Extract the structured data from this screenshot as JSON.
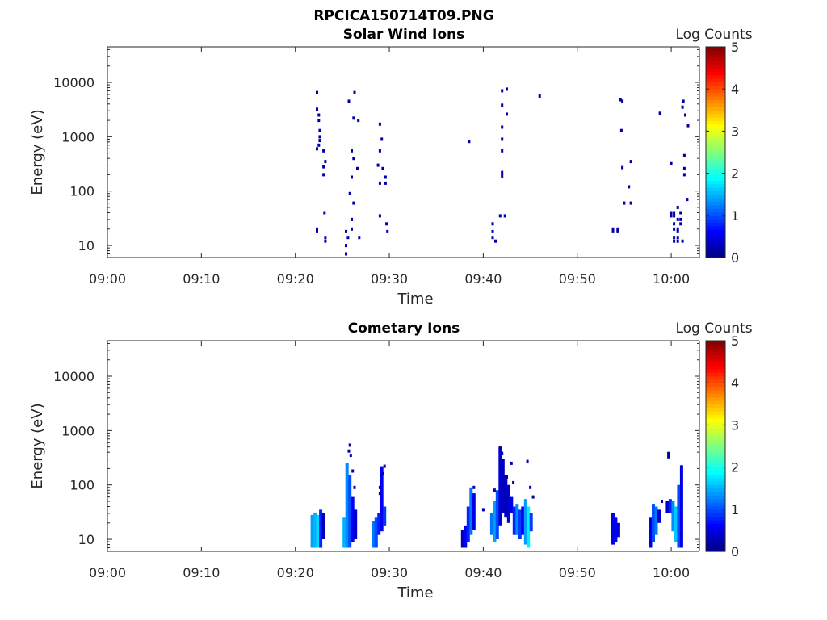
{
  "figure": {
    "title": "RPCICA150714T09.PNG"
  },
  "chart_data": [
    {
      "type": "heatmap",
      "title": "Solar Wind Ions",
      "xlabel": "Time",
      "ylabel": "Energy (eV)",
      "x_ticks": [
        "09:00",
        "09:10",
        "09:20",
        "09:30",
        "09:40",
        "09:50",
        "10:00"
      ],
      "y_ticks": [
        "10",
        "100",
        "1000",
        "10000"
      ],
      "y_scale": "log",
      "xlim": [
        "09:00",
        "10:03"
      ],
      "ylim": [
        6,
        45000
      ],
      "colorbar": {
        "label": "Log Counts",
        "ticks": [
          "0",
          "1",
          "2",
          "3",
          "4",
          "5"
        ],
        "range": [
          0,
          5
        ],
        "colormap": "jet"
      },
      "points": [
        [
          "09:22.3",
          6500,
          0.2
        ],
        [
          "09:22.3",
          3200,
          0.2
        ],
        [
          "09:22.5",
          2500,
          0.2
        ],
        [
          "09:22.5",
          2000,
          0.2
        ],
        [
          "09:22.6",
          1300,
          0.2
        ],
        [
          "09:22.6",
          1000,
          0.2
        ],
        [
          "09:22.6",
          850,
          0.2
        ],
        [
          "09:22.5",
          700,
          0.2
        ],
        [
          "09:22.3",
          600,
          0.2
        ],
        [
          "09:23.0",
          550,
          0.2
        ],
        [
          "09:23.2",
          350,
          0.2
        ],
        [
          "09:23.0",
          280,
          0.2
        ],
        [
          "09:23.0",
          200,
          0.2
        ],
        [
          "09:23.1",
          40,
          0.2
        ],
        [
          "09:22.3",
          20,
          0.2
        ],
        [
          "09:22.3",
          18,
          0.2
        ],
        [
          "09:23.2",
          14,
          0.2
        ],
        [
          "09:23.2",
          12,
          0.2
        ],
        [
          "09:25.7",
          4500,
          0.2
        ],
        [
          "09:26.3",
          6500,
          0.2
        ],
        [
          "09:26.2",
          2200,
          0.2
        ],
        [
          "09:26.7",
          2000,
          0.2
        ],
        [
          "09:26.0",
          550,
          0.2
        ],
        [
          "09:26.2",
          400,
          0.2
        ],
        [
          "09:26.6",
          260,
          0.2
        ],
        [
          "09:26.0",
          180,
          0.2
        ],
        [
          "09:25.8",
          90,
          0.2
        ],
        [
          "09:26.2",
          60,
          0.2
        ],
        [
          "09:26.0",
          30,
          0.2
        ],
        [
          "09:25.4",
          18,
          0.2
        ],
        [
          "09:25.6",
          14,
          0.2
        ],
        [
          "09:25.4",
          10,
          0.2
        ],
        [
          "09:25.4",
          7,
          0.2
        ],
        [
          "09:26.0",
          20,
          0.2
        ],
        [
          "09:26.8",
          14,
          0.2
        ],
        [
          "09:29.0",
          1700,
          0.2
        ],
        [
          "09:29.2",
          900,
          0.2
        ],
        [
          "09:29.0",
          550,
          0.2
        ],
        [
          "09:28.8",
          300,
          0.2
        ],
        [
          "09:29.3",
          260,
          0.2
        ],
        [
          "09:29.6",
          180,
          0.2
        ],
        [
          "09:29.0",
          140,
          0.2
        ],
        [
          "09:29.6",
          140,
          0.2
        ],
        [
          "09:29.0",
          35,
          0.2
        ],
        [
          "09:29.7",
          25,
          0.2
        ],
        [
          "09:29.8",
          18,
          0.2
        ],
        [
          "09:38.5",
          820,
          0.2
        ],
        [
          "09:42.0",
          7000,
          0.2
        ],
        [
          "09:42.5",
          7500,
          0.2
        ],
        [
          "09:42.0",
          3800,
          0.2
        ],
        [
          "09:42.5",
          2600,
          0.2
        ],
        [
          "09:42.0",
          1500,
          0.2
        ],
        [
          "09:42.0",
          900,
          0.2
        ],
        [
          "09:42.0",
          550,
          0.2
        ],
        [
          "09:42.0",
          220,
          0.2
        ],
        [
          "09:42.0",
          190,
          0.2
        ],
        [
          "09:41.0",
          25,
          0.2
        ],
        [
          "09:41.0",
          18,
          0.2
        ],
        [
          "09:41.0",
          14,
          0.2
        ],
        [
          "09:41.3",
          12,
          0.2
        ],
        [
          "09:41.8",
          35,
          0.2
        ],
        [
          "09:42.3",
          35,
          0.2
        ],
        [
          "09:46.0",
          5600,
          0.2
        ],
        [
          "09:54.6",
          4800,
          0.2
        ],
        [
          "09:54.8",
          4500,
          0.2
        ],
        [
          "09:54.7",
          1300,
          0.2
        ],
        [
          "09:54.8",
          270,
          0.2
        ],
        [
          "09:55.7",
          350,
          0.2
        ],
        [
          "09:55.5",
          120,
          0.2
        ],
        [
          "09:55.0",
          60,
          0.2
        ],
        [
          "09:55.7",
          60,
          0.2
        ],
        [
          "09:53.8",
          20,
          0.2
        ],
        [
          "09:53.8",
          18,
          0.2
        ],
        [
          "09:54.3",
          20,
          0.2
        ],
        [
          "09:54.3",
          18,
          0.2
        ],
        [
          "09:58.8",
          2700,
          0.2
        ],
        [
          "10:01.3",
          4500,
          0.2
        ],
        [
          "10:01.2",
          3500,
          0.2
        ],
        [
          "10:01.5",
          2500,
          0.2
        ],
        [
          "10:01.8",
          1600,
          0.2
        ],
        [
          "10:00.0",
          320,
          0.2
        ],
        [
          "10:01.4",
          450,
          0.2
        ],
        [
          "10:01.4",
          260,
          0.2
        ],
        [
          "10:01.4",
          200,
          0.2
        ],
        [
          "10:01.7",
          70,
          0.2
        ],
        [
          "10:00.7",
          50,
          0.2
        ],
        [
          "10:00.0",
          40,
          0.2
        ],
        [
          "10:00.3",
          40,
          0.2
        ],
        [
          "10:01.0",
          40,
          0.2
        ],
        [
          "10:00.0",
          35,
          0.2
        ],
        [
          "10:00.3",
          35,
          0.2
        ],
        [
          "10:00.7",
          30,
          0.2
        ],
        [
          "10:01.0",
          30,
          0.2
        ],
        [
          "10:00.3",
          25,
          0.2
        ],
        [
          "10:01.0",
          25,
          0.2
        ],
        [
          "10:00.3",
          20,
          0.2
        ],
        [
          "10:00.7",
          20,
          0.2
        ],
        [
          "10:00.7",
          18,
          0.2
        ],
        [
          "10:00.3",
          14,
          0.2
        ],
        [
          "10:00.7",
          14,
          0.2
        ],
        [
          "10:00.3",
          12,
          0.2
        ],
        [
          "10:00.7",
          12,
          0.2
        ],
        [
          "10:01.2",
          12,
          0.2
        ]
      ]
    },
    {
      "type": "heatmap",
      "title": "Cometary Ions",
      "xlabel": "Time",
      "ylabel": "Energy (eV)",
      "x_ticks": [
        "09:00",
        "09:10",
        "09:20",
        "09:30",
        "09:40",
        "09:50",
        "10:00"
      ],
      "y_ticks": [
        "10",
        "100",
        "1000",
        "10000"
      ],
      "y_scale": "log",
      "xlim": [
        "09:00",
        "10:03"
      ],
      "ylim": [
        6,
        45000
      ],
      "colorbar": {
        "label": "Log Counts",
        "ticks": [
          "0",
          "1",
          "2",
          "3",
          "4",
          "5"
        ],
        "range": [
          0,
          5
        ],
        "colormap": "jet"
      },
      "columns": [
        [
          "09:21.8",
          7,
          28,
          1.4
        ],
        [
          "09:22.1",
          7,
          30,
          1.5
        ],
        [
          "09:22.4",
          7,
          28,
          1.7
        ],
        [
          "09:22.7",
          7,
          35,
          0.8
        ],
        [
          "09:23.0",
          10,
          30,
          0.3
        ],
        [
          "09:25.2",
          7,
          25,
          1.5
        ],
        [
          "09:25.5",
          7,
          250,
          1.3
        ],
        [
          "09:25.8",
          7,
          150,
          1.0
        ],
        [
          "09:26.1",
          9,
          60,
          0.6
        ],
        [
          "09:26.4",
          10,
          35,
          0.4
        ],
        [
          "09:28.3",
          7,
          22,
          1.2
        ],
        [
          "09:28.6",
          7,
          25,
          1.0
        ],
        [
          "09:28.9",
          12,
          30,
          0.8
        ],
        [
          "09:29.2",
          14,
          220,
          0.6
        ],
        [
          "09:29.5",
          18,
          40,
          0.9
        ],
        [
          "09:37.8",
          7,
          15,
          0.3
        ],
        [
          "09:38.1",
          7,
          18,
          0.6
        ],
        [
          "09:38.4",
          9,
          40,
          0.8
        ],
        [
          "09:38.7",
          12,
          90,
          1.2
        ],
        [
          "09:39.0",
          15,
          70,
          0.5
        ],
        [
          "09:40.9",
          12,
          30,
          1.2
        ],
        [
          "09:41.2",
          9,
          50,
          1.4
        ],
        [
          "09:41.5",
          10,
          80,
          1.0
        ],
        [
          "09:41.8",
          18,
          500,
          0.4
        ],
        [
          "09:42.1",
          30,
          300,
          0.3
        ],
        [
          "09:42.4",
          25,
          150,
          0.3
        ],
        [
          "09:42.7",
          20,
          100,
          0.4
        ],
        [
          "09:43.0",
          30,
          60,
          0.5
        ],
        [
          "09:43.3",
          12,
          40,
          0.8
        ],
        [
          "09:43.6",
          12,
          45,
          1.3
        ],
        [
          "09:43.9",
          10,
          35,
          0.9
        ],
        [
          "09:44.2",
          12,
          40,
          0.6
        ],
        [
          "09:44.5",
          8,
          55,
          1.4
        ],
        [
          "09:44.8",
          7,
          40,
          1.8
        ],
        [
          "09:45.1",
          14,
          30,
          0.9
        ],
        [
          "09:53.8",
          8,
          30,
          0.5
        ],
        [
          "09:54.1",
          9,
          25,
          0.6
        ],
        [
          "09:54.4",
          11,
          20,
          0.4
        ],
        [
          "09:57.8",
          7,
          25,
          0.5
        ],
        [
          "09:58.1",
          9,
          45,
          1.0
        ],
        [
          "09:58.4",
          12,
          40,
          1.2
        ],
        [
          "09:58.7",
          20,
          35,
          0.4
        ],
        [
          "09:59.6",
          30,
          50,
          0.4
        ],
        [
          "09:59.9",
          30,
          55,
          0.8
        ],
        [
          "10:00.2",
          14,
          50,
          1.3
        ],
        [
          "10:00.5",
          9,
          40,
          1.6
        ],
        [
          "10:00.8",
          7,
          100,
          1.0
        ],
        [
          "10:01.1",
          7,
          230,
          0.5
        ]
      ],
      "points": [
        [
          "09:25.8",
          540,
          0.2
        ],
        [
          "09:25.7",
          420,
          0.2
        ],
        [
          "09:25.9",
          350,
          0.2
        ],
        [
          "09:26.1",
          180,
          0.2
        ],
        [
          "09:26.3",
          90,
          0.2
        ],
        [
          "09:29.5",
          220,
          0.2
        ],
        [
          "09:29.3",
          160,
          0.2
        ],
        [
          "09:29.0",
          90,
          0.2
        ],
        [
          "09:29.0",
          70,
          0.2
        ],
        [
          "09:39.0",
          90,
          0.2
        ],
        [
          "09:40.0",
          35,
          0.2
        ],
        [
          "09:41.8",
          480,
          0.2
        ],
        [
          "09:42.0",
          380,
          0.2
        ],
        [
          "09:43.0",
          250,
          0.2
        ],
        [
          "09:42.5",
          140,
          0.2
        ],
        [
          "09:43.2",
          110,
          0.2
        ],
        [
          "09:41.2",
          80,
          0.2
        ],
        [
          "09:44.7",
          270,
          0.2
        ],
        [
          "09:45.0",
          90,
          0.2
        ],
        [
          "09:45.3",
          60,
          0.2
        ],
        [
          "09:59.7",
          380,
          0.2
        ],
        [
          "09:59.7",
          330,
          0.2
        ],
        [
          "09:59.0",
          50,
          0.2
        ]
      ]
    }
  ]
}
